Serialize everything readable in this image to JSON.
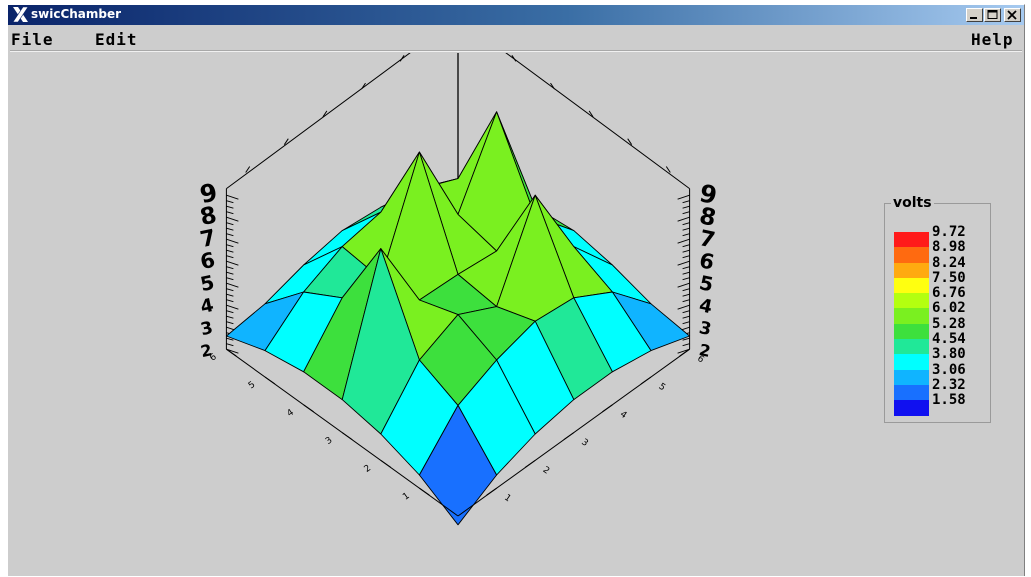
{
  "window": {
    "title": "swicChamber"
  },
  "menu": {
    "file": "File",
    "edit": "Edit",
    "help": "Help"
  },
  "legend": {
    "title": "volts",
    "levels": [
      {
        "value": "9.72",
        "color": "#ff1a1a"
      },
      {
        "value": "8.98",
        "color": "#ff6a10"
      },
      {
        "value": "8.24",
        "color": "#ffaa10"
      },
      {
        "value": "7.50",
        "color": "#ffff10"
      },
      {
        "value": "6.76",
        "color": "#b4ff10"
      },
      {
        "value": "6.02",
        "color": "#7af020"
      },
      {
        "value": "5.28",
        "color": "#3de03d"
      },
      {
        "value": "4.54",
        "color": "#20e898"
      },
      {
        "value": "3.80",
        "color": "#00ffff"
      },
      {
        "value": "3.06",
        "color": "#10b4ff"
      },
      {
        "value": "2.32",
        "color": "#1870ff"
      },
      {
        "value": "1.58",
        "color": "#1010f0"
      }
    ]
  },
  "chart_data": {
    "type": "surface",
    "z_ticks": [
      "2",
      "3",
      "4",
      "5",
      "6",
      "7",
      "8",
      "9"
    ],
    "x_ticks": [
      "1",
      "2",
      "3",
      "4",
      "5",
      "6"
    ],
    "y_ticks": [
      "1",
      "2",
      "3",
      "4",
      "5",
      "6"
    ],
    "grid_z": [
      [
        1.6,
        2.6,
        3.2,
        3.5,
        3.5,
        3.2,
        2.6
      ],
      [
        2.6,
        4.5,
        5.3,
        5.8,
        5.6,
        4.6,
        2.8
      ],
      [
        3.2,
        5.3,
        6.1,
        5.2,
        9.0,
        5.4,
        3.3
      ],
      [
        3.5,
        9.1,
        5.5,
        5.4,
        5.2,
        5.5,
        3.6
      ],
      [
        3.5,
        5.6,
        5.2,
        9.7,
        5.6,
        9.0,
        3.4
      ],
      [
        3.2,
        4.6,
        5.4,
        5.7,
        5.5,
        4.7,
        3.0
      ],
      [
        2.6,
        2.8,
        3.3,
        3.6,
        3.4,
        3.0,
        1.6
      ]
    ]
  }
}
